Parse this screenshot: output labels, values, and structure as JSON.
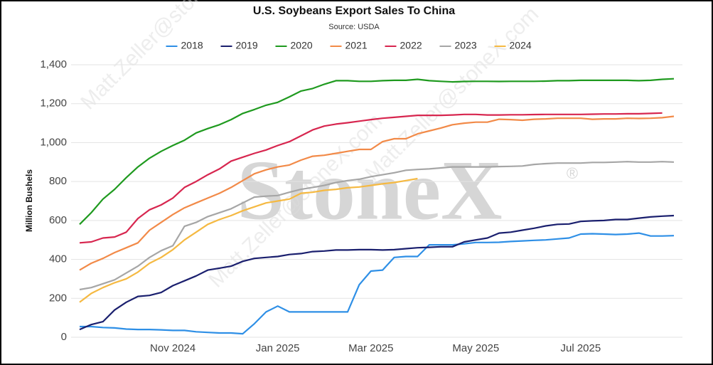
{
  "chart_data": {
    "type": "line",
    "title": "U.S. Soybeans Export Sales To China",
    "subtitle": "Source: USDA",
    "y_label": "Million Bushels",
    "watermark": "StoneX",
    "watermark_mark": "®",
    "watermark_email": "Matt.Zeller@stoneX.com",
    "categories": [
      null,
      null,
      null,
      null,
      null,
      null,
      null,
      null,
      "Nov 2024",
      null,
      null,
      null,
      null,
      null,
      null,
      null,
      null,
      "Jan 2025",
      null,
      null,
      null,
      null,
      null,
      null,
      null,
      "Mar 2025",
      null,
      null,
      null,
      null,
      null,
      null,
      null,
      null,
      "May 2025",
      null,
      null,
      null,
      null,
      null,
      null,
      null,
      null,
      "Jul 2025",
      null,
      null,
      null,
      null,
      null,
      null,
      null,
      null
    ],
    "ylim": [
      0,
      1400
    ],
    "yticks": [
      0,
      200,
      400,
      600,
      800,
      {
        "value": 1000,
        "label": "1,000"
      },
      {
        "value": 1200,
        "label": "1,200"
      },
      {
        "value": 1400,
        "label": "1,400"
      }
    ],
    "grid": true,
    "legend": "top",
    "series": [
      {
        "name": "2018",
        "color": "#2e8fe6",
        "values": [
          55,
          55,
          50,
          48,
          42,
          40,
          40,
          38,
          35,
          35,
          28,
          25,
          22,
          22,
          18,
          70,
          130,
          160,
          130,
          130,
          130,
          130,
          130,
          130,
          270,
          340,
          345,
          410,
          415,
          415,
          475,
          475,
          475,
          480,
          487,
          487,
          488,
          492,
          495,
          498,
          500,
          505,
          510,
          530,
          532,
          530,
          528,
          530,
          535,
          520,
          520,
          522
        ]
      },
      {
        "name": "2019",
        "color": "#1a1f6e",
        "values": [
          40,
          65,
          80,
          140,
          180,
          210,
          215,
          230,
          265,
          290,
          315,
          345,
          355,
          365,
          390,
          405,
          410,
          415,
          425,
          430,
          440,
          443,
          448,
          448,
          450,
          450,
          448,
          450,
          455,
          460,
          462,
          465,
          465,
          490,
          500,
          510,
          535,
          540,
          550,
          560,
          572,
          580,
          582,
          595,
          598,
          600,
          605,
          605,
          612,
          618,
          622,
          625
        ]
      },
      {
        "name": "2020",
        "color": "#1f9a1f",
        "values": [
          580,
          640,
          710,
          760,
          820,
          875,
          920,
          955,
          985,
          1012,
          1050,
          1072,
          1092,
          1118,
          1150,
          1170,
          1192,
          1207,
          1235,
          1265,
          1278,
          1300,
          1318,
          1318,
          1315,
          1315,
          1318,
          1320,
          1320,
          1325,
          1318,
          1315,
          1312,
          1314,
          1315,
          1315,
          1314,
          1315,
          1315,
          1315,
          1316,
          1318,
          1318,
          1320,
          1320,
          1320,
          1320,
          1320,
          1318,
          1320,
          1325,
          1328
        ]
      },
      {
        "name": "2021",
        "color": "#f28a48",
        "values": [
          345,
          380,
          405,
          435,
          460,
          485,
          550,
          590,
          630,
          665,
          690,
          715,
          740,
          770,
          805,
          840,
          860,
          875,
          885,
          910,
          930,
          935,
          945,
          955,
          965,
          965,
          1005,
          1020,
          1020,
          1045,
          1060,
          1075,
          1092,
          1100,
          1105,
          1105,
          1120,
          1118,
          1115,
          1120,
          1122,
          1125,
          1125,
          1125,
          1120,
          1122,
          1122,
          1125,
          1124,
          1125,
          1128,
          1135
        ]
      },
      {
        "name": "2022",
        "color": "#d7264f",
        "values": [
          485,
          490,
          510,
          515,
          540,
          610,
          655,
          680,
          715,
          770,
          800,
          835,
          865,
          905,
          925,
          945,
          962,
          985,
          1005,
          1035,
          1065,
          1085,
          1095,
          1102,
          1110,
          1118,
          1125,
          1130,
          1135,
          1140,
          1140,
          1140,
          1142,
          1145,
          1145,
          1142,
          1142,
          1143,
          1143,
          1144,
          1145,
          1145,
          1145,
          1145,
          1146,
          1147,
          1147,
          1148,
          1148,
          1150,
          1152,
          null
        ]
      },
      {
        "name": "2023",
        "color": "#a6a6a6",
        "values": [
          245,
          255,
          275,
          295,
          330,
          365,
          410,
          445,
          470,
          570,
          590,
          620,
          640,
          660,
          690,
          720,
          725,
          728,
          745,
          760,
          770,
          780,
          795,
          805,
          812,
          825,
          835,
          845,
          858,
          862,
          865,
          870,
          875,
          875,
          875,
          875,
          877,
          878,
          880,
          888,
          892,
          895,
          895,
          895,
          898,
          898,
          900,
          902,
          900,
          900,
          902,
          900
        ]
      },
      {
        "name": "2024",
        "color": "#f5b942",
        "values": [
          180,
          225,
          255,
          280,
          300,
          335,
          380,
          410,
          450,
          500,
          540,
          580,
          605,
          625,
          650,
          670,
          690,
          700,
          710,
          740,
          745,
          755,
          760,
          768,
          772,
          780,
          788,
          795,
          805,
          815,
          null,
          null,
          null,
          null,
          null,
          null,
          null,
          null,
          null,
          null,
          null,
          null,
          null,
          null,
          null,
          null,
          null,
          null,
          null,
          null,
          null,
          null
        ]
      }
    ]
  }
}
